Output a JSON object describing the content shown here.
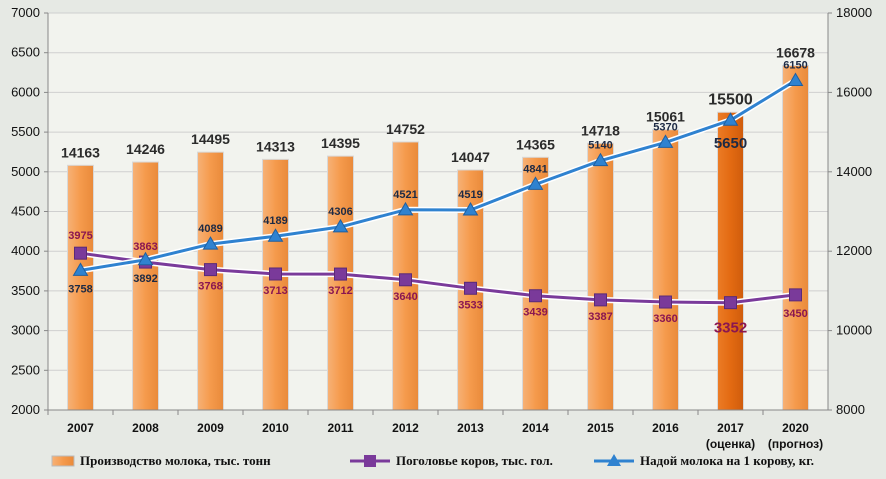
{
  "chart_data": {
    "type": "bar",
    "categories": [
      "2007",
      "2008",
      "2009",
      "2010",
      "2011",
      "2012",
      "2013",
      "2014",
      "2015",
      "2016",
      "2017",
      "2020"
    ],
    "category_notes": [
      "",
      "",
      "",
      "",
      "",
      "",
      "",
      "",
      "",
      "",
      "(оценка)",
      "(прогноз)"
    ],
    "series": [
      {
        "name": "Производство молока, тыс. тонн",
        "type": "bar",
        "axis": "right",
        "color": "#f59a4c",
        "highlight_color": "#e36a12",
        "highlight_index": 10,
        "values": [
          14163,
          14246,
          14495,
          14313,
          14395,
          14752,
          14047,
          14365,
          14718,
          15061,
          15500,
          16678
        ]
      },
      {
        "name": "Поголовье коров, тыс. гол.",
        "type": "line",
        "axis": "left",
        "color": "#7a3a9a",
        "marker": "square",
        "values": [
          3975,
          3863,
          3768,
          3713,
          3712,
          3640,
          3533,
          3439,
          3387,
          3360,
          3352,
          3450
        ]
      },
      {
        "name": "Надой молока на 1 корову, кг.",
        "type": "line",
        "axis": "left",
        "color": "#2f82d0",
        "marker": "triangle",
        "values": [
          3758,
          3892,
          4089,
          4189,
          4306,
          4521,
          4519,
          4841,
          5140,
          5370,
          5650,
          6150
        ]
      }
    ],
    "y_left": {
      "min": 2000,
      "max": 7000,
      "ticks": [
        2000,
        2500,
        3000,
        3500,
        4000,
        4500,
        5000,
        5500,
        6000,
        6500,
        7000
      ]
    },
    "y_right": {
      "min": 8000,
      "max": 18000,
      "ticks": [
        8000,
        10000,
        12000,
        14000,
        16000,
        18000
      ]
    },
    "grid": true,
    "legend_position": "bottom"
  }
}
